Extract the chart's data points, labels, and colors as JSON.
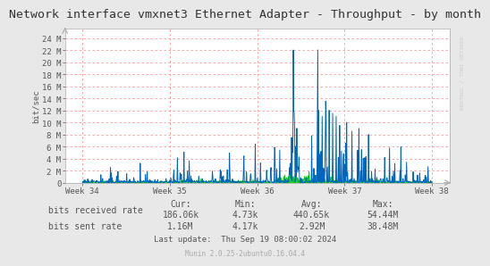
{
  "title": "Network interface vmxnet3 Ethernet Adapter - Throughput - by month",
  "ylabel": "bit/sec",
  "background_color": "#e8e8e8",
  "plot_bg_color": "#ffffff",
  "grid_color": "#ff9999",
  "yticks": [
    0,
    2000000,
    4000000,
    6000000,
    8000000,
    10000000,
    12000000,
    14000000,
    16000000,
    18000000,
    20000000,
    22000000,
    24000000
  ],
  "ytick_labels": [
    "0",
    "2 M",
    "4 M",
    "6 M",
    "8 M",
    "10 M",
    "12 M",
    "14 M",
    "16 M",
    "18 M",
    "20 M",
    "22 M",
    "24 M"
  ],
  "ylim": [
    0,
    25500000
  ],
  "xtick_labels": [
    "Week 34",
    "Week 35",
    "Week 36",
    "Week 37",
    "Week 38"
  ],
  "legend_items": [
    {
      "label": "bits received rate",
      "color": "#00cc00"
    },
    {
      "label": "bits sent rate",
      "color": "#0066bb"
    }
  ],
  "stats_headers": [
    "Cur:",
    "Min:",
    "Avg:",
    "Max:"
  ],
  "stats_received": [
    "186.06k",
    "4.73k",
    "440.65k",
    "54.44M"
  ],
  "stats_sent": [
    "1.16M",
    "4.17k",
    "2.92M",
    "38.48M"
  ],
  "last_update": "Last update:  Thu Sep 19 08:00:02 2024",
  "munin_version": "Munin 2.0.25-2ubuntu0.16.04.4",
  "rrdtool_label": "RRDTOOL / TOBI OETIKER",
  "title_fontsize": 9.5,
  "axis_fontsize": 6.5,
  "legend_fontsize": 7.5,
  "stats_fontsize": 7.0
}
